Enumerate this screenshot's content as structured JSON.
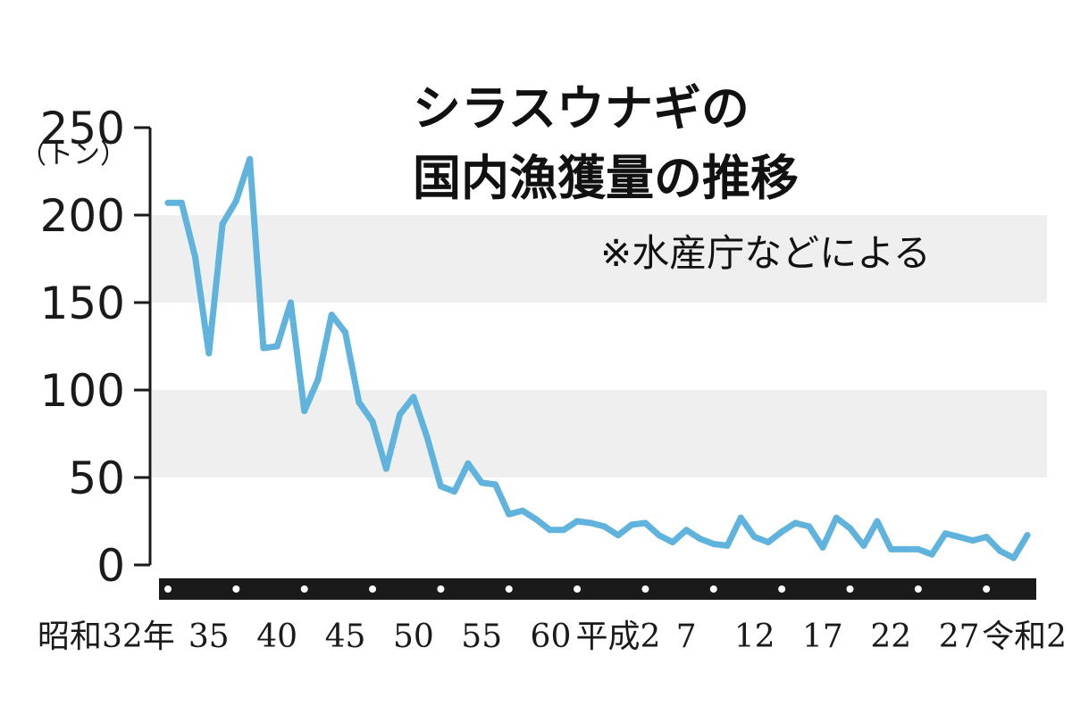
{
  "chart_data": {
    "type": "line",
    "title_lines": [
      "シラスウナギの",
      "国内漁獲量の推移"
    ],
    "source_note": "※水産庁などによる",
    "ylabel": "（トン）",
    "ylim": [
      0,
      250
    ],
    "yticks": [
      "250",
      "200",
      "150",
      "100",
      "50",
      "0"
    ],
    "grid": "alternating shaded bands",
    "xtick_labels": [
      "昭和32年",
      "35",
      "40",
      "45",
      "50",
      "55",
      "60",
      "平成2",
      "7",
      "12",
      "17",
      "22",
      "27",
      "令和2"
    ],
    "x": [
      "1957",
      "1958",
      "1959",
      "1960",
      "1961",
      "1962",
      "1963",
      "1964",
      "1965",
      "1966",
      "1967",
      "1968",
      "1969",
      "1970",
      "1971",
      "1972",
      "1973",
      "1974",
      "1975",
      "1976",
      "1977",
      "1978",
      "1979",
      "1980",
      "1981",
      "1982",
      "1983",
      "1984",
      "1985",
      "1986",
      "1987",
      "1988",
      "1989",
      "1990",
      "1991",
      "1992",
      "1993",
      "1994",
      "1995",
      "1996",
      "1997",
      "1998",
      "1999",
      "2000",
      "2001",
      "2002",
      "2003",
      "2004",
      "2005",
      "2006",
      "2007",
      "2008",
      "2009",
      "2010",
      "2011",
      "2012",
      "2013",
      "2014",
      "2015",
      "2016",
      "2017",
      "2018",
      "2019",
      "2020"
    ],
    "series": [
      {
        "values": [
          207,
          207,
          176,
          121,
          195,
          208,
          232,
          124,
          125,
          150,
          88,
          106,
          143,
          133,
          93,
          82,
          55,
          86,
          96,
          73,
          45,
          42,
          58,
          47,
          46,
          29,
          31,
          26,
          20,
          20,
          25,
          24,
          22,
          17,
          23,
          24,
          17,
          13,
          20,
          15,
          12,
          11,
          27,
          16,
          13,
          19,
          24,
          22,
          10,
          27,
          21,
          11,
          25,
          9,
          9,
          9,
          6,
          18,
          16,
          14,
          16,
          8,
          4,
          17
        ],
        "color": "#5fb3dc"
      }
    ],
    "colors": {
      "line": "#5fb3dc",
      "band": "#efefef",
      "axis": "#1a1a1a",
      "dots": "#ffffff"
    }
  }
}
